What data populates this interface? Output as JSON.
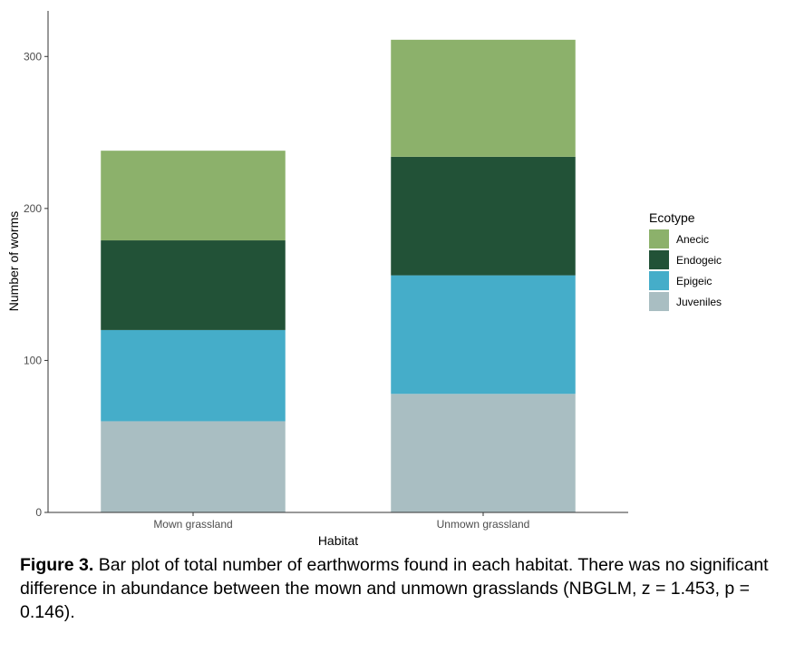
{
  "chart_data": {
    "type": "bar",
    "stacked": true,
    "xlabel": "Habitat",
    "ylabel": "Number of worms",
    "categories": [
      "Mown grassland",
      "Unmown grassland"
    ],
    "ylim": [
      0,
      330
    ],
    "yticks": [
      0,
      100,
      200,
      300
    ],
    "grid": false,
    "legend": {
      "title": "Ecotype",
      "placement": "right"
    },
    "series": [
      {
        "name": "Juveniles",
        "color": "#a9bec2",
        "values": [
          60,
          78
        ]
      },
      {
        "name": "Epigeic",
        "color": "#45adc9",
        "values": [
          60,
          78
        ]
      },
      {
        "name": "Endogeic",
        "color": "#225237",
        "values": [
          59,
          78
        ]
      },
      {
        "name": "Anecic",
        "color": "#8cb16b",
        "values": [
          59,
          77
        ]
      }
    ],
    "legend_order": [
      "Anecic",
      "Endogeic",
      "Epigeic",
      "Juveniles"
    ]
  },
  "caption": {
    "label": "Figure 3.",
    "text": " Bar plot of total number of earthworms found in each habitat. There was no significant difference in abundance between the mown and unmown grasslands (NBGLM, z = 1.453, p = 0.146)."
  }
}
